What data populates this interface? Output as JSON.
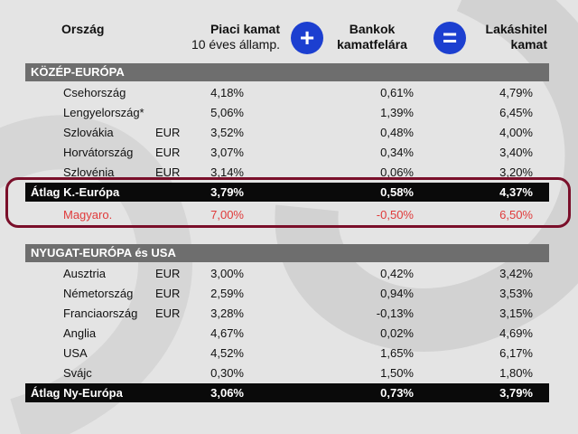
{
  "header": {
    "country": "Ország",
    "market_rate": "Piaci kamat",
    "market_rate_sub": "10 éves államp.",
    "plus_symbol": "+",
    "bank_margin_line1": "Bankok",
    "bank_margin_line2": "kamatfelára",
    "equals_symbol": "=",
    "mortgage_line1": "Lakáshitel",
    "mortgage_line2": "kamat"
  },
  "sections": {
    "central": {
      "title": "KÖZÉP-EURÓPA",
      "rows": [
        {
          "country": "Csehország",
          "currency": "",
          "market": "4,18%",
          "margin": "0,61%",
          "mortgage": "4,79%"
        },
        {
          "country": "Lengyelország*",
          "currency": "",
          "market": "5,06%",
          "margin": "1,39%",
          "mortgage": "6,45%"
        },
        {
          "country": "Szlovákia",
          "currency": "EUR",
          "market": "3,52%",
          "margin": "0,48%",
          "mortgage": "4,00%"
        },
        {
          "country": "Horvátország",
          "currency": "EUR",
          "market": "3,07%",
          "margin": "0,34%",
          "mortgage": "3,40%"
        },
        {
          "country": "Szlovénia",
          "currency": "EUR",
          "market": "3,14%",
          "margin": "0,06%",
          "mortgage": "3,20%"
        }
      ],
      "average": {
        "country": "Átlag K.-Európa",
        "market": "3,79%",
        "margin": "0,58%",
        "mortgage": "4,37%"
      },
      "hungary": {
        "country": "Magyaro.",
        "market": "7,00%",
        "margin": "-0,50%",
        "mortgage": "6,50%"
      }
    },
    "western": {
      "title": "NYUGAT-EURÓPA és USA",
      "rows": [
        {
          "country": "Ausztria",
          "currency": "EUR",
          "market": "3,00%",
          "margin": "0,42%",
          "mortgage": "3,42%"
        },
        {
          "country": "Németország",
          "currency": "EUR",
          "market": "2,59%",
          "margin": "0,94%",
          "mortgage": "3,53%"
        },
        {
          "country": "Franciaország",
          "currency": "EUR",
          "market": "3,28%",
          "margin": "-0,13%",
          "mortgage": "3,15%"
        },
        {
          "country": "Anglia",
          "currency": "",
          "market": "4,67%",
          "margin": "0,02%",
          "mortgage": "4,69%"
        },
        {
          "country": "USA",
          "currency": "",
          "market": "4,52%",
          "margin": "1,65%",
          "mortgage": "6,17%"
        },
        {
          "country": "Svájc",
          "currency": "",
          "market": "0,30%",
          "margin": "1,50%",
          "mortgage": "1,80%"
        }
      ],
      "average": {
        "country": "Átlag Ny-Európa",
        "market": "3,06%",
        "margin": "0,73%",
        "mortgage": "3,79%"
      }
    }
  },
  "colors": {
    "operator_circle": "#1c3fd0",
    "section_bar": "#6e6e6e",
    "average_bar": "#0a0a0a",
    "hungary_text": "#e03a3a",
    "highlight_border": "#7a0f2a"
  }
}
